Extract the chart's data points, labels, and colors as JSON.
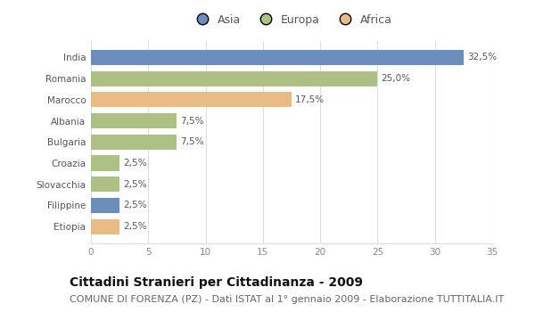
{
  "categories": [
    "India",
    "Romania",
    "Marocco",
    "Albania",
    "Bulgaria",
    "Croazia",
    "Slovacchia",
    "Filippine",
    "Etiopia"
  ],
  "values": [
    32.5,
    25.0,
    17.5,
    7.5,
    7.5,
    2.5,
    2.5,
    2.5,
    2.5
  ],
  "labels": [
    "32,5%",
    "25,0%",
    "17,5%",
    "7,5%",
    "7,5%",
    "2,5%",
    "2,5%",
    "2,5%",
    "2,5%"
  ],
  "colors": [
    "#6b8ebd",
    "#aec185",
    "#e8bc84",
    "#aec185",
    "#aec185",
    "#aec185",
    "#aec185",
    "#6b8ebd",
    "#e8bc84"
  ],
  "legend_labels": [
    "Asia",
    "Europa",
    "Africa"
  ],
  "legend_colors": [
    "#6b8ebd",
    "#aec185",
    "#e8bc84"
  ],
  "xlim": [
    0,
    35
  ],
  "xticks": [
    0,
    5,
    10,
    15,
    20,
    25,
    30,
    35
  ],
  "title": "Cittadini Stranieri per Cittadinanza - 2009",
  "subtitle": "COMUNE DI FORENZA (PZ) - Dati ISTAT al 1° gennaio 2009 - Elaborazione TUTTITALIA.IT",
  "bg_color": "#ffffff",
  "plot_bg_color": "#ffffff",
  "grid_color": "#dddddd",
  "title_fontsize": 10,
  "subtitle_fontsize": 8,
  "label_fontsize": 7.5,
  "tick_fontsize": 7.5,
  "legend_fontsize": 9,
  "bar_height": 0.72
}
